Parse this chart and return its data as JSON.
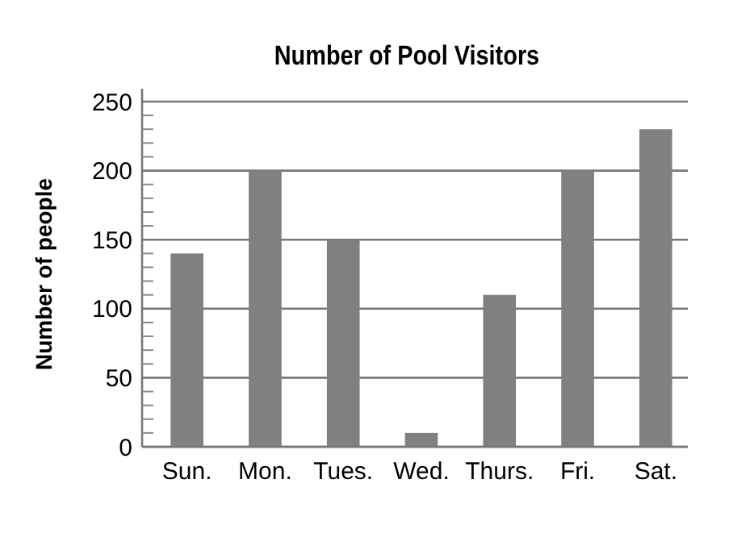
{
  "chart_data": {
    "type": "bar",
    "title": "Number of Pool Visitors",
    "ylabel": "Number of people",
    "categories": [
      "Sun.",
      "Mon.",
      "Tues.",
      "Wed.",
      "Thurs.",
      "Fri.",
      "Sat."
    ],
    "values": [
      140,
      200,
      150,
      10,
      110,
      200,
      230
    ],
    "color": "#808080",
    "ylim": [
      0,
      250
    ],
    "yticks": [
      0,
      {
        "value": 10,
        "label": null
      },
      {
        "value": 20,
        "label": null
      },
      {
        "value": 30,
        "label": null
      },
      {
        "value": 40,
        "label": null
      },
      50,
      {
        "value": 60,
        "label": null
      },
      {
        "value": 70,
        "label": null
      },
      {
        "value": 80,
        "label": null
      },
      {
        "value": 90,
        "label": null
      },
      100,
      {
        "value": 110,
        "label": null
      },
      {
        "value": 120,
        "label": null
      },
      {
        "value": 130,
        "label": null
      },
      {
        "value": 140,
        "label": null
      },
      150,
      {
        "value": 160,
        "label": null
      },
      {
        "value": 170,
        "label": null
      },
      {
        "value": 180,
        "label": null
      },
      {
        "value": 190,
        "label": null
      },
      200,
      {
        "value": 210,
        "label": null
      },
      {
        "value": 220,
        "label": null
      },
      {
        "value": 230,
        "label": null
      },
      {
        "value": 240,
        "label": null
      },
      250
    ],
    "grid": "y"
  }
}
